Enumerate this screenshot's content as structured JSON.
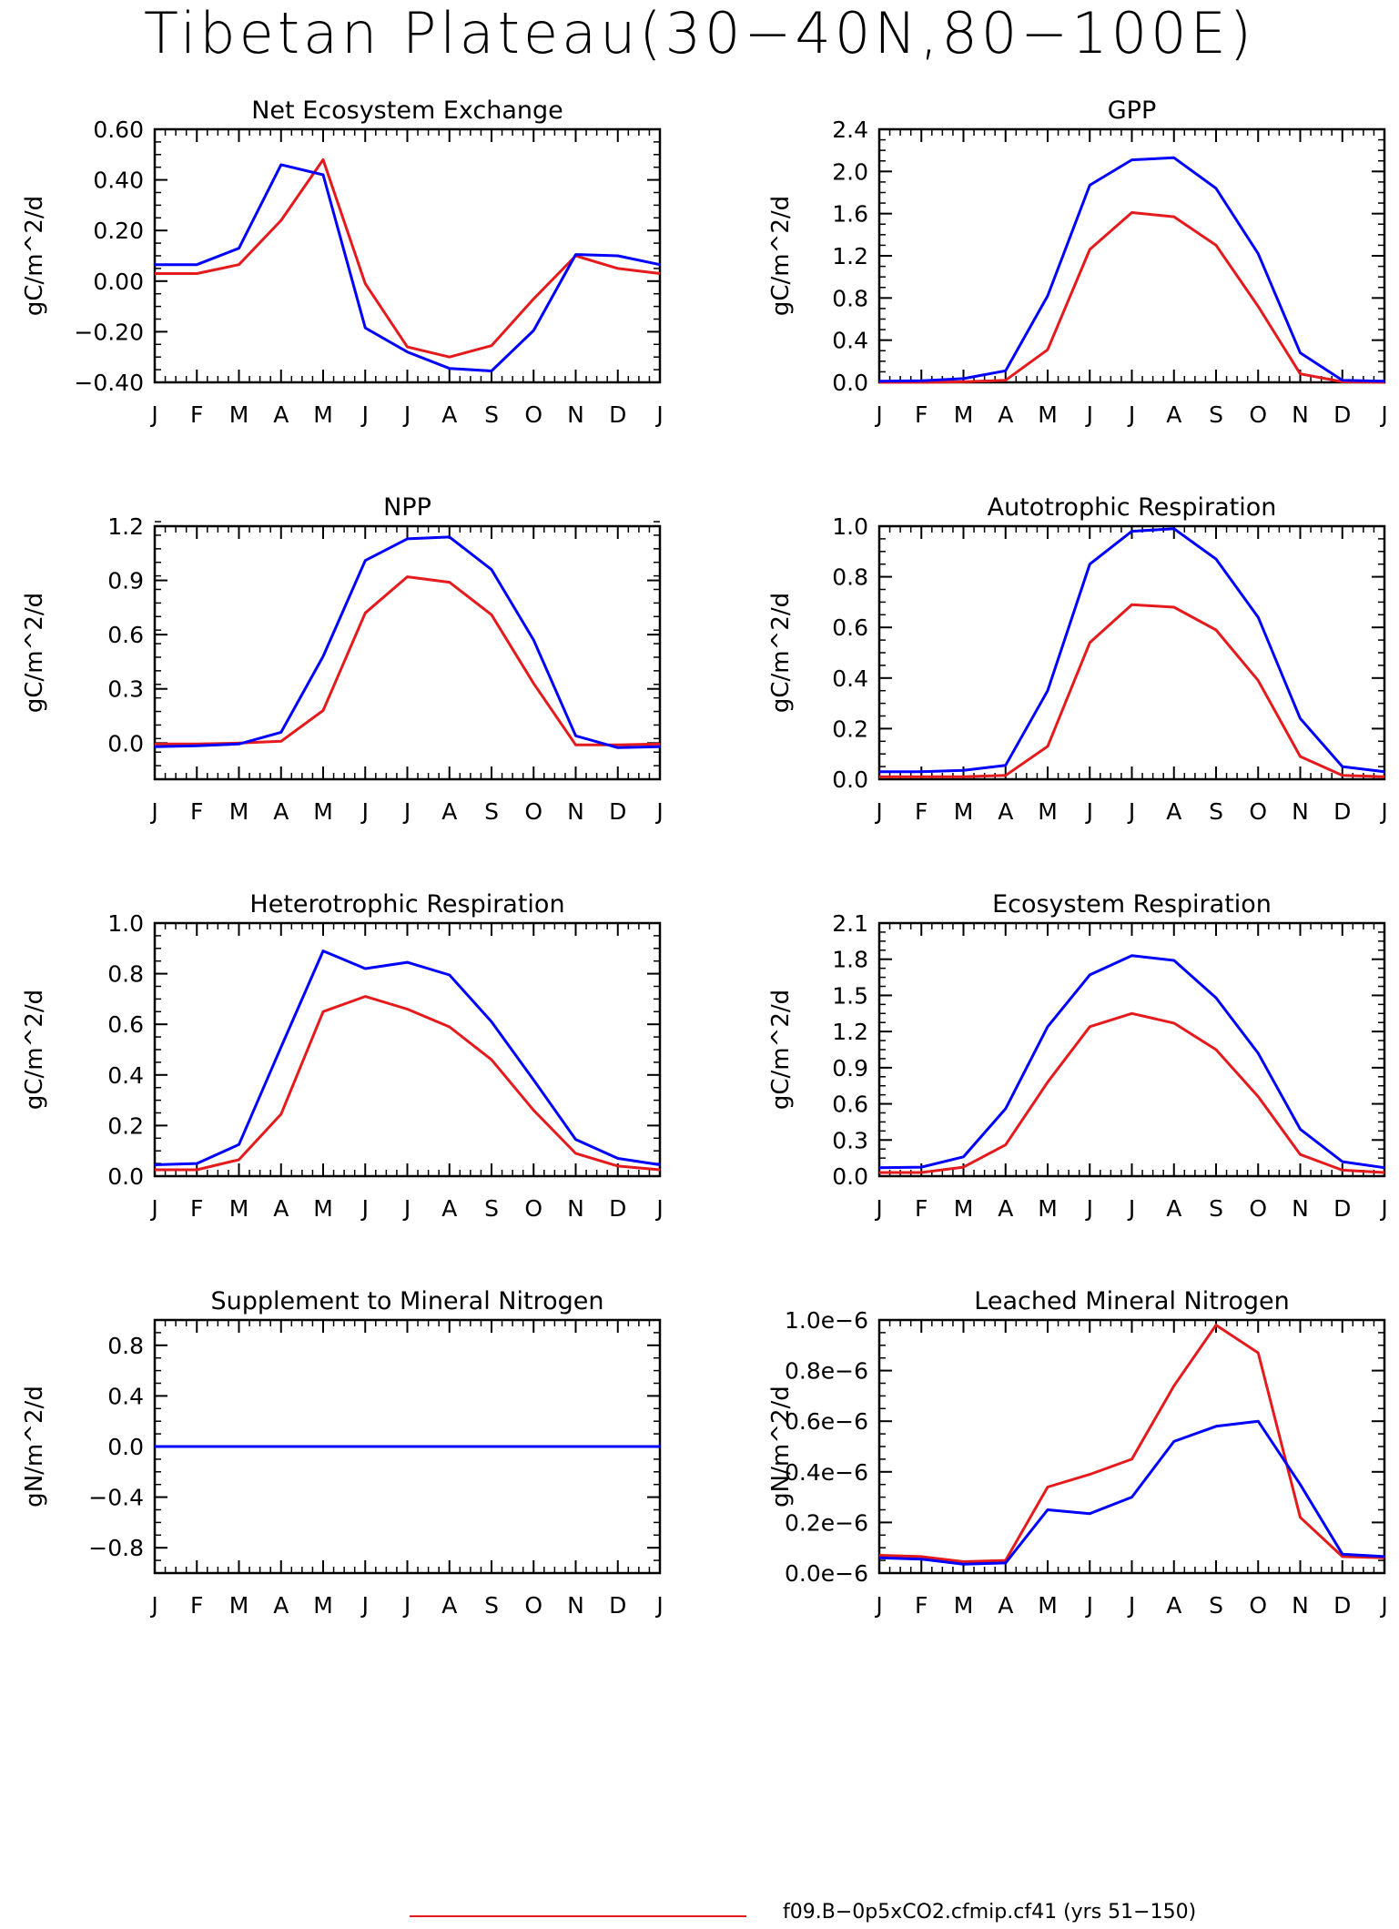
{
  "title": "Tibetan Plateau(30−40N,80−100E)",
  "months": [
    "J",
    "F",
    "M",
    "A",
    "M",
    "J",
    "J",
    "A",
    "S",
    "O",
    "N",
    "D",
    "J"
  ],
  "colors": {
    "red": "#e41a1c",
    "blue": "#0000ff",
    "axis": "#000000"
  },
  "legend": {
    "label": "f09.B−0p5xCO2.cfmip.cf41 (yrs 51−150)",
    "color": "#e41a1c"
  },
  "chart_data": [
    {
      "type": "line",
      "title": "Net Ecosystem Exchange",
      "ylabel": "gC/m^2/d",
      "ylim": [
        -0.4,
        0.6
      ],
      "yticks": [
        -0.4,
        -0.2,
        0.0,
        0.2,
        0.4,
        0.6
      ],
      "yticklabels": [
        "−0.40",
        "−0.20",
        "0.00",
        "0.20",
        "0.40",
        "0.60"
      ],
      "series": [
        {
          "color": "#e41a1c",
          "values": [
            0.03,
            0.03,
            0.065,
            0.24,
            0.48,
            -0.01,
            -0.26,
            -0.3,
            -0.255,
            -0.07,
            0.1,
            0.05,
            0.03
          ]
        },
        {
          "color": "#0000ff",
          "values": [
            0.065,
            0.065,
            0.13,
            0.46,
            0.42,
            -0.185,
            -0.28,
            -0.345,
            -0.355,
            -0.195,
            0.105,
            0.1,
            0.065
          ]
        }
      ]
    },
    {
      "type": "line",
      "title": "GPP",
      "ylabel": "gC/m^2/d",
      "ylim": [
        0,
        2.4
      ],
      "yticks": [
        0,
        0.4,
        0.8,
        1.2,
        1.6,
        2.0,
        2.4
      ],
      "yticklabels": [
        "0.0",
        "0.4",
        "0.8",
        "1.2",
        "1.6",
        "2.0",
        "2.4"
      ],
      "series": [
        {
          "color": "#e41a1c",
          "values": [
            0.0,
            0.0,
            0.005,
            0.02,
            0.31,
            1.26,
            1.61,
            1.57,
            1.3,
            0.72,
            0.08,
            0.005,
            0.0
          ]
        },
        {
          "color": "#0000ff",
          "values": [
            0.01,
            0.015,
            0.035,
            0.11,
            0.82,
            1.87,
            2.11,
            2.13,
            1.84,
            1.22,
            0.28,
            0.02,
            0.01
          ]
        }
      ]
    },
    {
      "type": "line",
      "title": "NPP",
      "ylabel": "gC/m^2/d",
      "ylim": [
        -0.2,
        1.2
      ],
      "yticks": [
        0,
        0.3,
        0.6,
        0.9,
        1.2
      ],
      "yticklabels": [
        "0.0",
        "0.3",
        "0.6",
        "0.9",
        "1.2"
      ],
      "series": [
        {
          "color": "#e41a1c",
          "values": [
            -0.005,
            -0.005,
            0.0,
            0.01,
            0.18,
            0.72,
            0.92,
            0.89,
            0.71,
            0.33,
            -0.01,
            -0.01,
            -0.005
          ]
        },
        {
          "color": "#0000ff",
          "values": [
            -0.02,
            -0.015,
            -0.005,
            0.06,
            0.48,
            1.01,
            1.13,
            1.14,
            0.96,
            0.57,
            0.04,
            -0.025,
            -0.02
          ]
        }
      ]
    },
    {
      "type": "line",
      "title": "Autotrophic Respiration",
      "ylabel": "gC/m^2/d",
      "ylim": [
        0,
        1.0
      ],
      "yticks": [
        0,
        0.2,
        0.4,
        0.6,
        0.8,
        1.0
      ],
      "yticklabels": [
        "0.0",
        "0.2",
        "0.4",
        "0.6",
        "0.8",
        "1.0"
      ],
      "series": [
        {
          "color": "#e41a1c",
          "values": [
            0.01,
            0.01,
            0.01,
            0.015,
            0.13,
            0.54,
            0.69,
            0.68,
            0.59,
            0.39,
            0.09,
            0.015,
            0.01
          ]
        },
        {
          "color": "#0000ff",
          "values": [
            0.03,
            0.03,
            0.035,
            0.055,
            0.35,
            0.85,
            0.98,
            0.99,
            0.87,
            0.64,
            0.24,
            0.05,
            0.03
          ]
        }
      ]
    },
    {
      "type": "line",
      "title": "Heterotrophic Respiration",
      "ylabel": "gC/m^2/d",
      "ylim": [
        0,
        1.0
      ],
      "yticks": [
        0,
        0.2,
        0.4,
        0.6,
        0.8,
        1.0
      ],
      "yticklabels": [
        "0.0",
        "0.2",
        "0.4",
        "0.6",
        "0.8",
        "1.0"
      ],
      "series": [
        {
          "color": "#e41a1c",
          "values": [
            0.025,
            0.025,
            0.065,
            0.245,
            0.65,
            0.71,
            0.66,
            0.59,
            0.46,
            0.26,
            0.09,
            0.04,
            0.025
          ]
        },
        {
          "color": "#0000ff",
          "values": [
            0.045,
            0.05,
            0.125,
            0.51,
            0.89,
            0.82,
            0.845,
            0.795,
            0.61,
            0.38,
            0.145,
            0.07,
            0.045
          ]
        }
      ]
    },
    {
      "type": "line",
      "title": "Ecosystem Respiration",
      "ylabel": "gC/m^2/d",
      "ylim": [
        0,
        2.1
      ],
      "yticks": [
        0,
        0.3,
        0.6,
        0.9,
        1.2,
        1.5,
        1.8,
        2.1
      ],
      "yticklabels": [
        "0.0",
        "0.3",
        "0.6",
        "0.9",
        "1.2",
        "1.5",
        "1.8",
        "2.1"
      ],
      "series": [
        {
          "color": "#e41a1c",
          "values": [
            0.03,
            0.03,
            0.075,
            0.26,
            0.78,
            1.24,
            1.35,
            1.27,
            1.05,
            0.66,
            0.18,
            0.05,
            0.03
          ]
        },
        {
          "color": "#0000ff",
          "values": [
            0.07,
            0.075,
            0.16,
            0.56,
            1.24,
            1.67,
            1.83,
            1.79,
            1.48,
            1.02,
            0.39,
            0.12,
            0.07
          ]
        }
      ]
    },
    {
      "type": "line",
      "title": "Supplement to Mineral Nitrogen",
      "ylabel": "gN/m^2/d",
      "ylim": [
        -1.0,
        1.0
      ],
      "yticks": [
        -0.8,
        -0.4,
        0.0,
        0.4,
        0.8
      ],
      "yticklabels": [
        "−0.8",
        "−0.4",
        "0.0",
        "0.4",
        "0.8"
      ],
      "series": [
        {
          "color": "#e41a1c",
          "values": [
            0,
            0,
            0,
            0,
            0,
            0,
            0,
            0,
            0,
            0,
            0,
            0,
            0
          ]
        },
        {
          "color": "#0000ff",
          "values": [
            0,
            0,
            0,
            0,
            0,
            0,
            0,
            0,
            0,
            0,
            0,
            0,
            0
          ]
        }
      ]
    },
    {
      "type": "line",
      "title": "Leached Mineral Nitrogen",
      "ylabel": "gN/m^2/d",
      "ylim": [
        0,
        1.0
      ],
      "yticks": [
        0,
        0.2,
        0.4,
        0.6,
        0.8,
        1.0
      ],
      "yticklabels": [
        "0.0e−6",
        "0.2e−6",
        "0.4e−6",
        "0.6e−6",
        "0.8e−6",
        "1.0e−6"
      ],
      "series": [
        {
          "color": "#e41a1c",
          "values": [
            0.07,
            0.065,
            0.045,
            0.05,
            0.34,
            0.39,
            0.45,
            0.74,
            0.98,
            0.87,
            0.22,
            0.065,
            0.06
          ]
        },
        {
          "color": "#0000ff",
          "values": [
            0.06,
            0.055,
            0.035,
            0.04,
            0.25,
            0.235,
            0.3,
            0.52,
            0.58,
            0.6,
            0.35,
            0.075,
            0.065
          ]
        }
      ]
    }
  ]
}
